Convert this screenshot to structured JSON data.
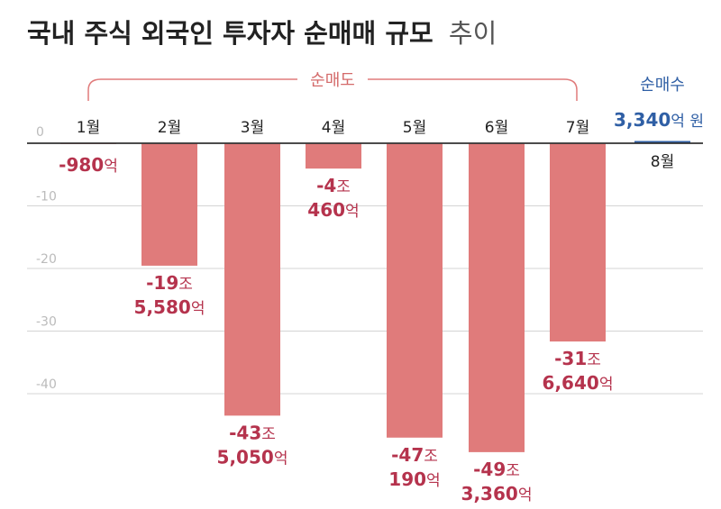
{
  "title": "국내 주식 외국인 투자자 순매매 규모",
  "title_suffix": "추이",
  "chart_data": {
    "type": "bar",
    "title": "국내 주식 외국인 투자자 순매매 규모 추이",
    "categories": [
      "1월",
      "2월",
      "3월",
      "4월",
      "5월",
      "6월",
      "7월",
      "8월"
    ],
    "values_eok": [
      -980,
      -195580,
      -435050,
      -40460,
      -470190,
      -493360,
      -316640,
      3340
    ],
    "y_ticks": [
      "0",
      "-10",
      "-20",
      "-30",
      "-40"
    ],
    "y_tick_values": [
      0,
      -10,
      -20,
      -30,
      -40
    ],
    "ylim": [
      -50,
      0
    ],
    "grid": true,
    "group_labels": {
      "sell": "순매도",
      "buy": "순매수"
    },
    "colors": {
      "sell": "#e07b7b",
      "sell_label": "#b5334d",
      "buy": "#2f5fa5",
      "grid": "#d4d4d4",
      "axis": "#333333"
    },
    "data_labels": [
      {
        "num": "-980",
        "unit": "억"
      },
      {
        "num": "-19",
        "unit": "조",
        "num2": "5,580",
        "unit2": "억"
      },
      {
        "num": "-43",
        "unit": "조",
        "num2": "5,050",
        "unit2": "억"
      },
      {
        "num": "-4",
        "unit": "조",
        "num2": "460",
        "unit2": "억"
      },
      {
        "num": "-47",
        "unit": "조",
        "num2": "190",
        "unit2": "억"
      },
      {
        "num": "-49",
        "unit": "조",
        "num2": "3,360",
        "unit2": "억"
      },
      {
        "num": "-31",
        "unit": "조",
        "num2": "6,640",
        "unit2": "억"
      },
      {
        "num": "3,340",
        "unit": "억 원"
      }
    ]
  }
}
